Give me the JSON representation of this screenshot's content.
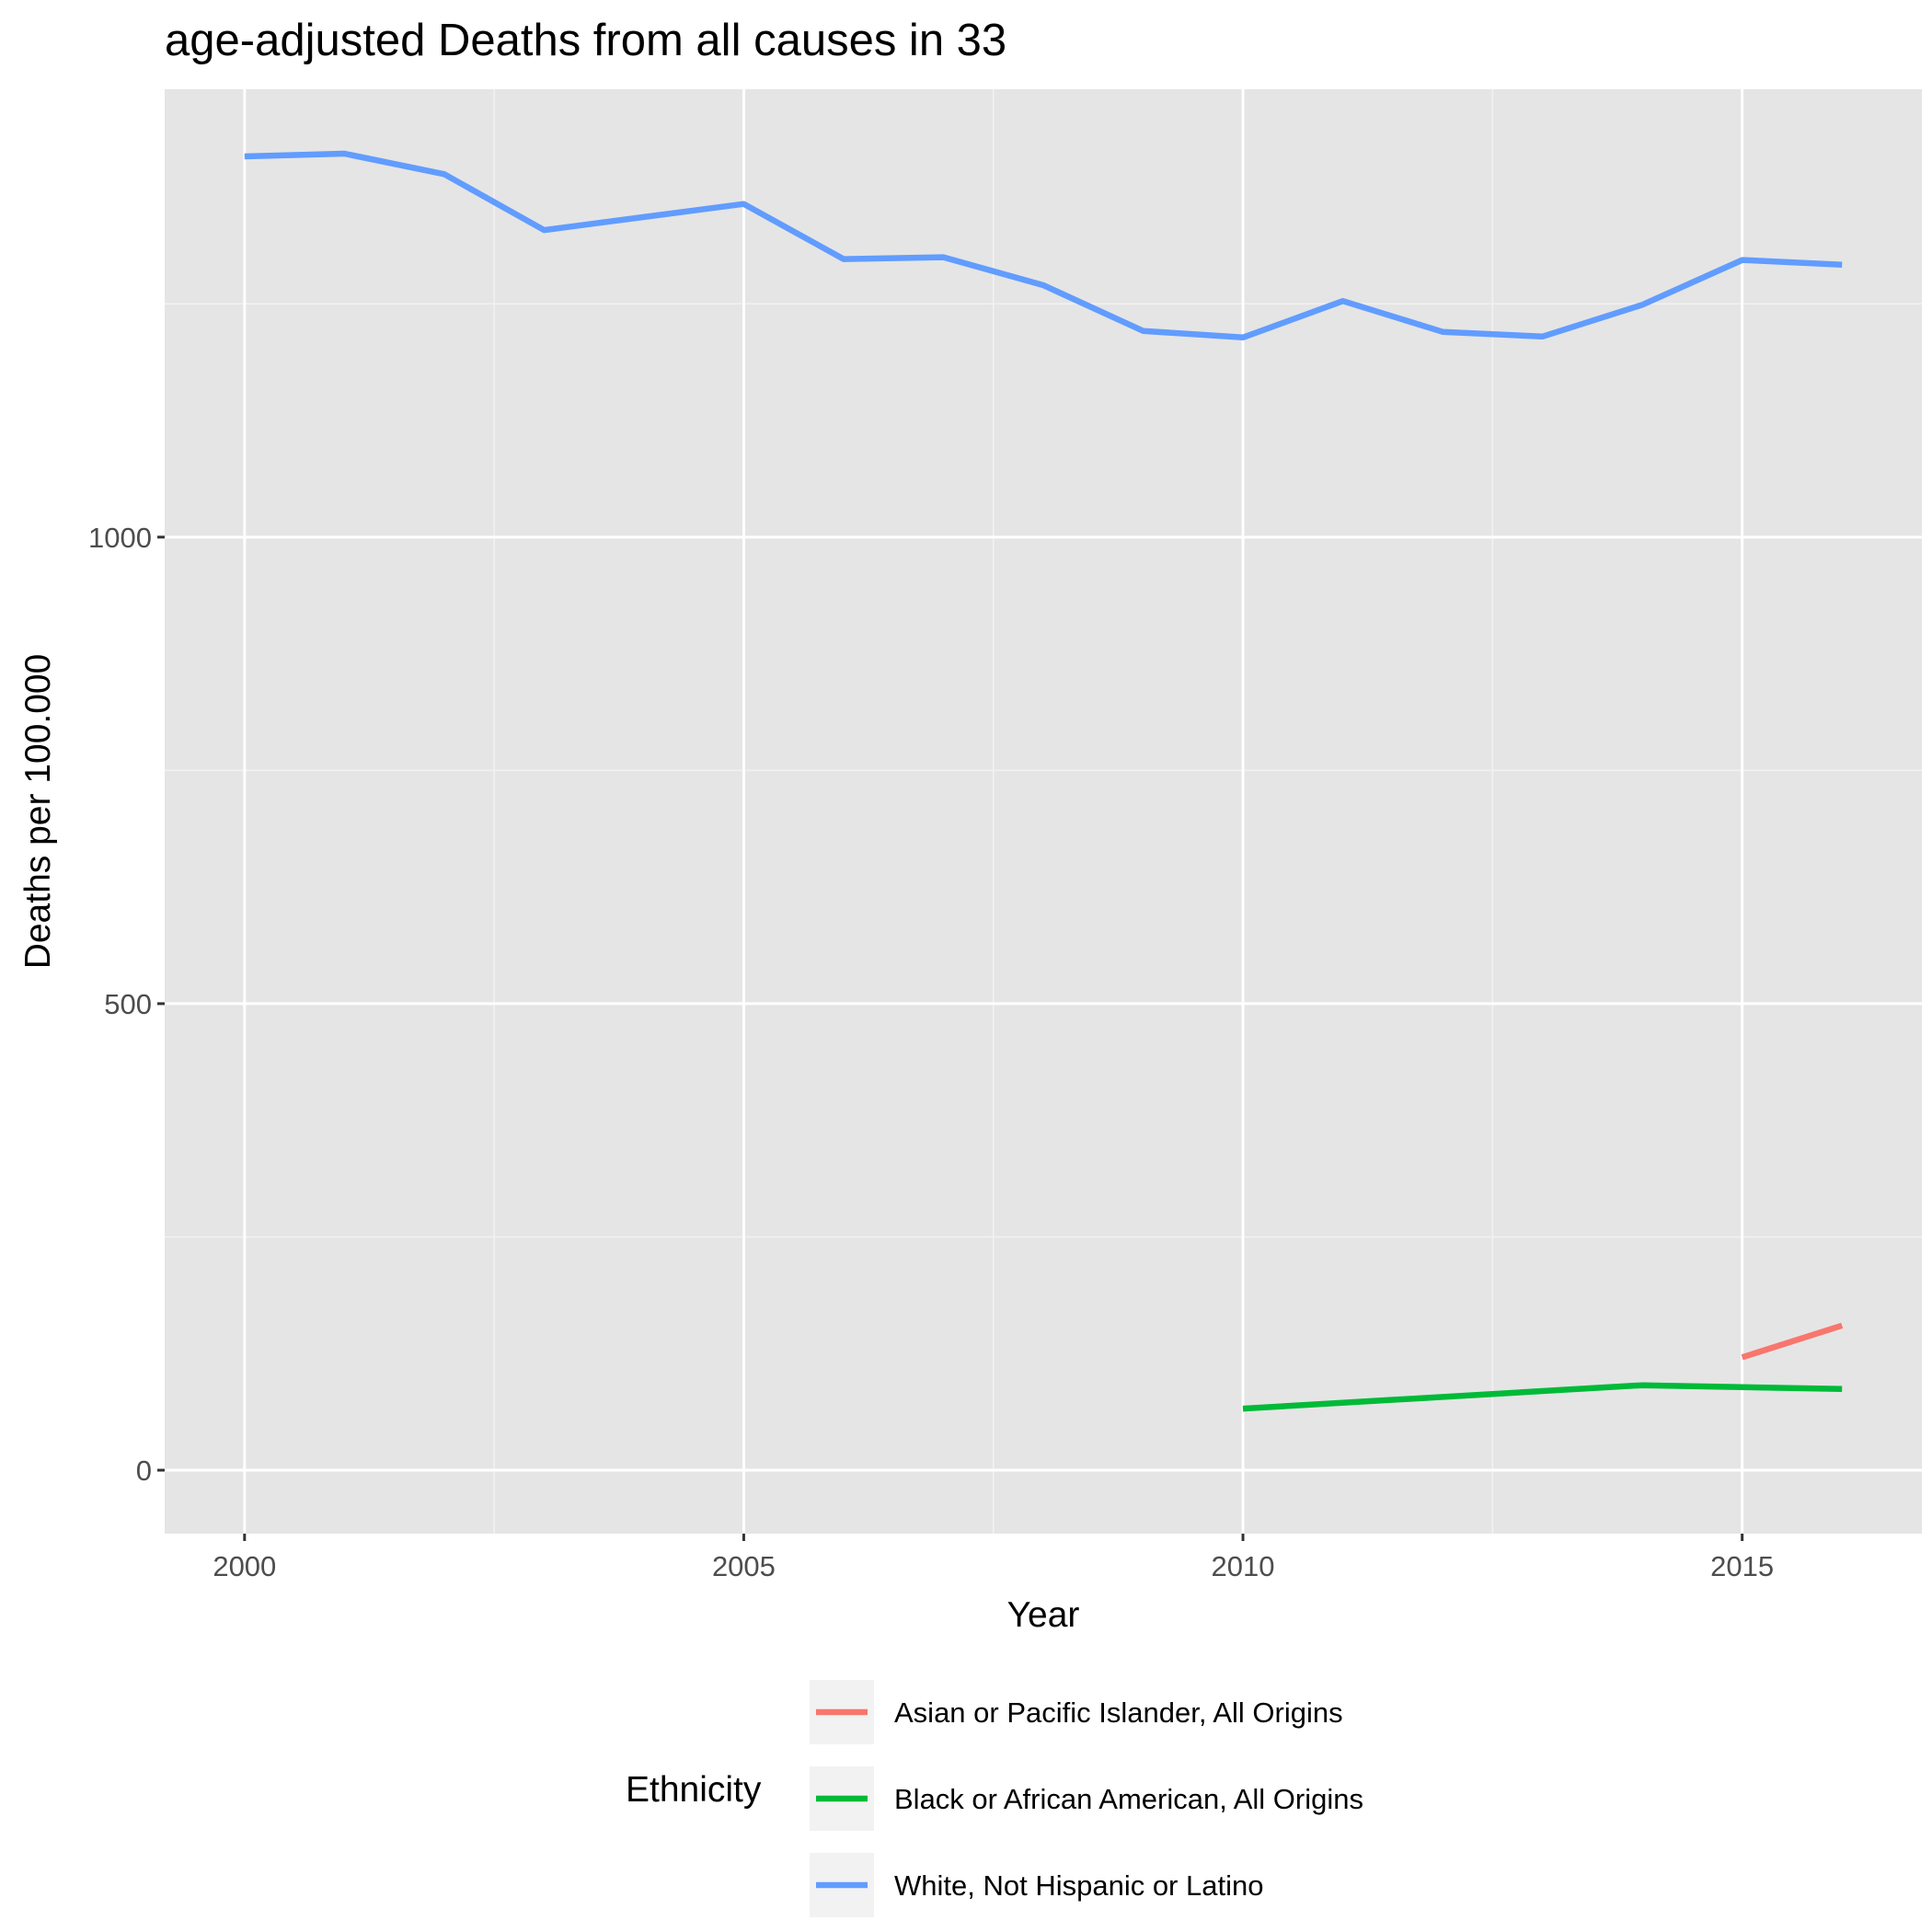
{
  "chart_data": {
    "type": "line",
    "title": "age-adjusted Deaths from all causes in 33",
    "xlabel": "Year",
    "ylabel": "Deaths per 100.000",
    "xlim": [
      1999.2,
      2016.8
    ],
    "ylim": [
      -68,
      1480
    ],
    "x_ticks": [
      "2000",
      "2005",
      "2010",
      "2015"
    ],
    "y_ticks": [
      "0",
      "500",
      "1000"
    ],
    "grid": true,
    "legend": {
      "title": "Ethnicity",
      "position": "bottom"
    },
    "series": [
      {
        "name": "Asian or Pacific Islander, All Origins",
        "color": "#F8766D",
        "x": [
          2015,
          2016
        ],
        "y": [
          121,
          155
        ]
      },
      {
        "name": "Black or African American, All Origins",
        "color": "#00BA38",
        "x": [
          2010,
          2014,
          2015,
          2016
        ],
        "y": [
          66,
          91,
          89,
          87
        ]
      },
      {
        "name": "White, Not Hispanic or Latino",
        "color": "#619CFF",
        "x": [
          2000,
          2001,
          2002,
          2003,
          2004,
          2005,
          2006,
          2007,
          2008,
          2009,
          2010,
          2011,
          2012,
          2013,
          2014,
          2015,
          2016
        ],
        "y": [
          1408,
          1411,
          1389,
          1329,
          1343,
          1357,
          1298,
          1300,
          1270,
          1221,
          1214,
          1253,
          1220,
          1215,
          1249,
          1297,
          1292
        ]
      }
    ]
  }
}
